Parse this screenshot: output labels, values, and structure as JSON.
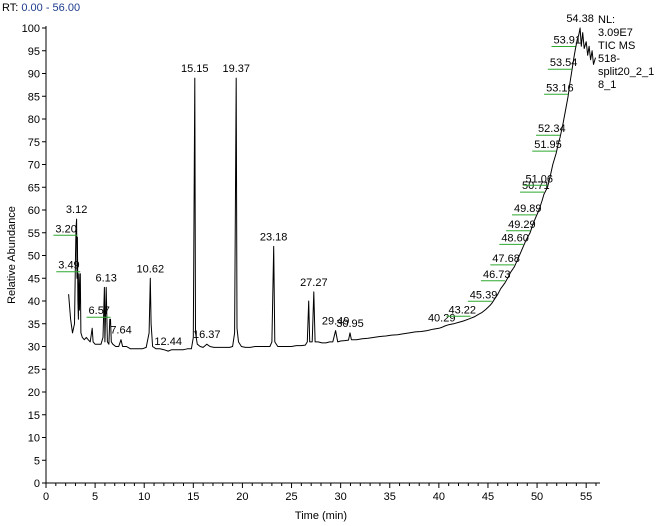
{
  "header": {
    "rt_prefix": "RT:",
    "rt_range": "0.00 - 56.00"
  },
  "colors": {
    "trace": "#000000",
    "peak_marker": "#2ea82e",
    "rt_text": "#1c3c8c"
  },
  "info_text": [
    "NL:",
    "3.09E7",
    "TIC  MS",
    "518-",
    "split20_2_1",
    "8_1"
  ],
  "chart_data": {
    "type": "line",
    "title": "",
    "xlabel": "Time (min)",
    "ylabel": "Relative Abundance",
    "xlim": [
      0,
      56
    ],
    "ylim": [
      0,
      100
    ],
    "x_ticks": [
      0,
      5,
      10,
      15,
      20,
      25,
      30,
      35,
      40,
      45,
      50,
      55
    ],
    "x_minor_step": 1,
    "y_ticks": [
      0,
      5,
      10,
      15,
      20,
      25,
      30,
      35,
      40,
      45,
      50,
      55,
      60,
      65,
      70,
      75,
      80,
      85,
      90,
      95,
      100
    ],
    "grid": false,
    "series": [
      {
        "values": [
          [
            2.3,
            41.5
          ],
          [
            2.5,
            36
          ],
          [
            2.7,
            33
          ],
          [
            2.9,
            35
          ],
          [
            3.0,
            50
          ],
          [
            3.05,
            56
          ],
          [
            3.12,
            58
          ],
          [
            3.16,
            45
          ],
          [
            3.2,
            54
          ],
          [
            3.25,
            40
          ],
          [
            3.3,
            36
          ],
          [
            3.35,
            46
          ],
          [
            3.4,
            38
          ],
          [
            3.49,
            46
          ],
          [
            3.55,
            33
          ],
          [
            3.7,
            32
          ],
          [
            3.9,
            31.5
          ],
          [
            4.1,
            32
          ],
          [
            4.3,
            31.5
          ],
          [
            4.5,
            31
          ],
          [
            4.7,
            34
          ],
          [
            4.8,
            31
          ],
          [
            5.0,
            30.5
          ],
          [
            5.3,
            30.5
          ],
          [
            5.6,
            30.5
          ],
          [
            5.8,
            32
          ],
          [
            5.95,
            43
          ],
          [
            6.0,
            31
          ],
          [
            6.13,
            43
          ],
          [
            6.25,
            31
          ],
          [
            6.4,
            30.5
          ],
          [
            6.5,
            36
          ],
          [
            6.57,
            36
          ],
          [
            6.65,
            31
          ],
          [
            6.8,
            30.5
          ],
          [
            7.1,
            30
          ],
          [
            7.4,
            30
          ],
          [
            7.64,
            31.5
          ],
          [
            7.8,
            30
          ],
          [
            8.2,
            30
          ],
          [
            8.6,
            29.5
          ],
          [
            9.0,
            29.5
          ],
          [
            9.4,
            29.5
          ],
          [
            9.8,
            29.5
          ],
          [
            10.2,
            29.8
          ],
          [
            10.5,
            33
          ],
          [
            10.62,
            45
          ],
          [
            10.7,
            35
          ],
          [
            10.85,
            30
          ],
          [
            11.2,
            29.5
          ],
          [
            11.6,
            29.5
          ],
          [
            12.0,
            29.3
          ],
          [
            12.44,
            29
          ],
          [
            12.8,
            29.3
          ],
          [
            13.2,
            29.3
          ],
          [
            13.6,
            29.3
          ],
          [
            14.0,
            29.3
          ],
          [
            14.4,
            29.5
          ],
          [
            14.8,
            29.5
          ],
          [
            15.0,
            32
          ],
          [
            15.15,
            89
          ],
          [
            15.22,
            33
          ],
          [
            15.4,
            30.5
          ],
          [
            15.7,
            30
          ],
          [
            16.0,
            29.8
          ],
          [
            16.37,
            30.5
          ],
          [
            16.7,
            30
          ],
          [
            17.1,
            29.8
          ],
          [
            17.5,
            29.8
          ],
          [
            17.9,
            29.8
          ],
          [
            18.3,
            29.8
          ],
          [
            18.7,
            29.8
          ],
          [
            19.0,
            30
          ],
          [
            19.2,
            33
          ],
          [
            19.37,
            89
          ],
          [
            19.45,
            34
          ],
          [
            19.6,
            31
          ],
          [
            19.9,
            30
          ],
          [
            20.3,
            29.8
          ],
          [
            20.8,
            29.8
          ],
          [
            21.3,
            30
          ],
          [
            21.8,
            30
          ],
          [
            22.3,
            30
          ],
          [
            22.8,
            30
          ],
          [
            23.0,
            31
          ],
          [
            23.18,
            52
          ],
          [
            23.3,
            31
          ],
          [
            23.6,
            30
          ],
          [
            24.0,
            30
          ],
          [
            24.5,
            30
          ],
          [
            25.0,
            30
          ],
          [
            25.5,
            30.2
          ],
          [
            26.0,
            30.2
          ],
          [
            26.4,
            30.3
          ],
          [
            26.6,
            31
          ],
          [
            26.75,
            40
          ],
          [
            26.85,
            31
          ],
          [
            27.1,
            31
          ],
          [
            27.27,
            42
          ],
          [
            27.4,
            31
          ],
          [
            27.7,
            31
          ],
          [
            28.1,
            30.8
          ],
          [
            28.5,
            30.8
          ],
          [
            28.9,
            31
          ],
          [
            29.2,
            31
          ],
          [
            29.49,
            33.5
          ],
          [
            29.7,
            31
          ],
          [
            30.0,
            31.2
          ],
          [
            30.4,
            31.3
          ],
          [
            30.8,
            31.4
          ],
          [
            30.95,
            33
          ],
          [
            31.1,
            31.5
          ],
          [
            31.6,
            31.5
          ],
          [
            32.2,
            31.7
          ],
          [
            32.8,
            31.8
          ],
          [
            33.4,
            32
          ],
          [
            34.0,
            32.2
          ],
          [
            34.6,
            32.3
          ],
          [
            35.2,
            32.5
          ],
          [
            35.8,
            32.6
          ],
          [
            36.4,
            32.8
          ],
          [
            37.0,
            33
          ],
          [
            37.6,
            33.2
          ],
          [
            38.2,
            33.3
          ],
          [
            38.8,
            33.5
          ],
          [
            39.4,
            33.8
          ],
          [
            40.0,
            34
          ],
          [
            40.29,
            34.2
          ],
          [
            40.6,
            34.5
          ],
          [
            41.0,
            34.8
          ],
          [
            41.5,
            35
          ],
          [
            42.0,
            35.3
          ],
          [
            42.5,
            35.6
          ],
          [
            43.0,
            36
          ],
          [
            43.22,
            36.2
          ],
          [
            43.6,
            36.5
          ],
          [
            44.0,
            37
          ],
          [
            44.4,
            37.5
          ],
          [
            44.8,
            38.2
          ],
          [
            45.2,
            39
          ],
          [
            45.39,
            39.5
          ],
          [
            45.7,
            40.5
          ],
          [
            46.0,
            41.5
          ],
          [
            46.3,
            42.7
          ],
          [
            46.73,
            44
          ],
          [
            47.0,
            45
          ],
          [
            47.3,
            46.3
          ],
          [
            47.68,
            47.5
          ],
          [
            48.0,
            49
          ],
          [
            48.3,
            50.5
          ],
          [
            48.6,
            52
          ],
          [
            48.9,
            53.5
          ],
          [
            49.29,
            55
          ],
          [
            49.6,
            57
          ],
          [
            49.89,
            58.5
          ],
          [
            50.2,
            60
          ],
          [
            50.5,
            62
          ],
          [
            50.71,
            63.5
          ],
          [
            51.06,
            65
          ],
          [
            51.3,
            67
          ],
          [
            51.6,
            70
          ],
          [
            51.95,
            72.5
          ],
          [
            52.15,
            74.5
          ],
          [
            52.34,
            76
          ],
          [
            52.6,
            78.5
          ],
          [
            52.9,
            82
          ],
          [
            53.16,
            85
          ],
          [
            53.35,
            88
          ],
          [
            53.54,
            90.5
          ],
          [
            53.75,
            93.5
          ],
          [
            53.91,
            95.5
          ],
          [
            54.1,
            97.5
          ],
          [
            54.25,
            98.5
          ],
          [
            54.38,
            100
          ],
          [
            54.5,
            96
          ],
          [
            54.65,
            99
          ],
          [
            54.8,
            95.5
          ],
          [
            55.0,
            97
          ],
          [
            55.15,
            94
          ],
          [
            55.3,
            96
          ],
          [
            55.45,
            93
          ],
          [
            55.6,
            95
          ],
          [
            55.75,
            92
          ],
          [
            55.95,
            93.5
          ]
        ]
      }
    ],
    "peak_labels": [
      {
        "label": "3.12",
        "x": 3.12,
        "y": 58
      },
      {
        "label": "3.20",
        "x": 3.2,
        "y": 54
      },
      {
        "label": "3.49",
        "x": 3.49,
        "y": 46
      },
      {
        "label": "6.13",
        "x": 6.13,
        "y": 43
      },
      {
        "label": "6.57",
        "x": 6.57,
        "y": 36
      },
      {
        "label": "7.64",
        "x": 7.64,
        "y": 31.5
      },
      {
        "label": "10.62",
        "x": 10.62,
        "y": 45
      },
      {
        "label": "12.44",
        "x": 12.44,
        "y": 29
      },
      {
        "label": "15.15",
        "x": 15.15,
        "y": 89
      },
      {
        "label": "16.37",
        "x": 16.37,
        "y": 30.5
      },
      {
        "label": "19.37",
        "x": 19.37,
        "y": 89
      },
      {
        "label": "23.18",
        "x": 23.18,
        "y": 52
      },
      {
        "label": "27.27",
        "x": 27.27,
        "y": 42
      },
      {
        "label": "29.49",
        "x": 29.49,
        "y": 33.5
      },
      {
        "label": "30.95",
        "x": 30.95,
        "y": 33
      },
      {
        "label": "40.29",
        "x": 40.29,
        "y": 34.2
      },
      {
        "label": "43.22",
        "x": 43.22,
        "y": 36.2
      },
      {
        "label": "45.39",
        "x": 45.39,
        "y": 39.5
      },
      {
        "label": "46.73",
        "x": 46.73,
        "y": 44
      },
      {
        "label": "47.68",
        "x": 47.68,
        "y": 47.5
      },
      {
        "label": "48.60",
        "x": 48.6,
        "y": 52
      },
      {
        "label": "49.29",
        "x": 49.29,
        "y": 55
      },
      {
        "label": "49.89",
        "x": 49.89,
        "y": 58.5
      },
      {
        "label": "50.71",
        "x": 50.71,
        "y": 63.5
      },
      {
        "label": "51.06",
        "x": 51.06,
        "y": 65
      },
      {
        "label": "51.95",
        "x": 51.95,
        "y": 72.5
      },
      {
        "label": "52.34",
        "x": 52.34,
        "y": 76
      },
      {
        "label": "53.16",
        "x": 53.16,
        "y": 85
      },
      {
        "label": "53.54",
        "x": 53.54,
        "y": 90.5
      },
      {
        "label": "53.91",
        "x": 53.91,
        "y": 95.5
      },
      {
        "label": "54.38",
        "x": 54.38,
        "y": 100
      }
    ]
  }
}
